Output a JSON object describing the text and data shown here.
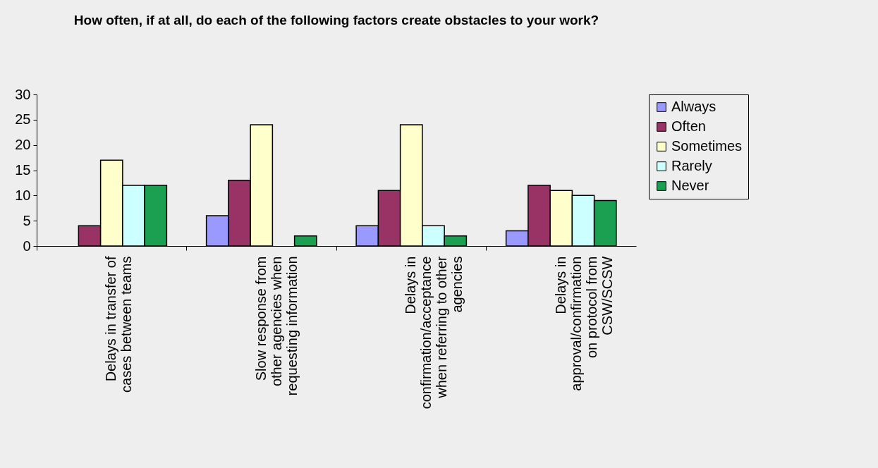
{
  "chart_data": {
    "type": "bar",
    "title": "How often, if at all, do each of the following factors create obstacles to your work?",
    "categories": [
      "Delays in transfer of cases between teams",
      "Slow response from other agencies when requesting information",
      "Delays in confirmation/acceptance when referring to other agencies",
      "Delays in approval/confirmation on protocol from CSW/SCSW"
    ],
    "series": [
      {
        "name": "Always",
        "color": "#9999ff",
        "values": [
          0,
          6,
          4,
          3
        ]
      },
      {
        "name": "Often",
        "color": "#993366",
        "values": [
          4,
          13,
          11,
          12
        ]
      },
      {
        "name": "Sometimes",
        "color": "#ffffcc",
        "values": [
          17,
          24,
          24,
          11
        ]
      },
      {
        "name": "Rarely",
        "color": "#ccffff",
        "values": [
          12,
          0,
          4,
          10
        ]
      },
      {
        "name": "Never",
        "color": "#1aa050",
        "values": [
          12,
          2,
          2,
          9
        ]
      }
    ],
    "ylim": [
      0,
      30
    ],
    "yticks": [
      0,
      5,
      10,
      15,
      20,
      25,
      30
    ],
    "grid": false,
    "legend": "right"
  }
}
